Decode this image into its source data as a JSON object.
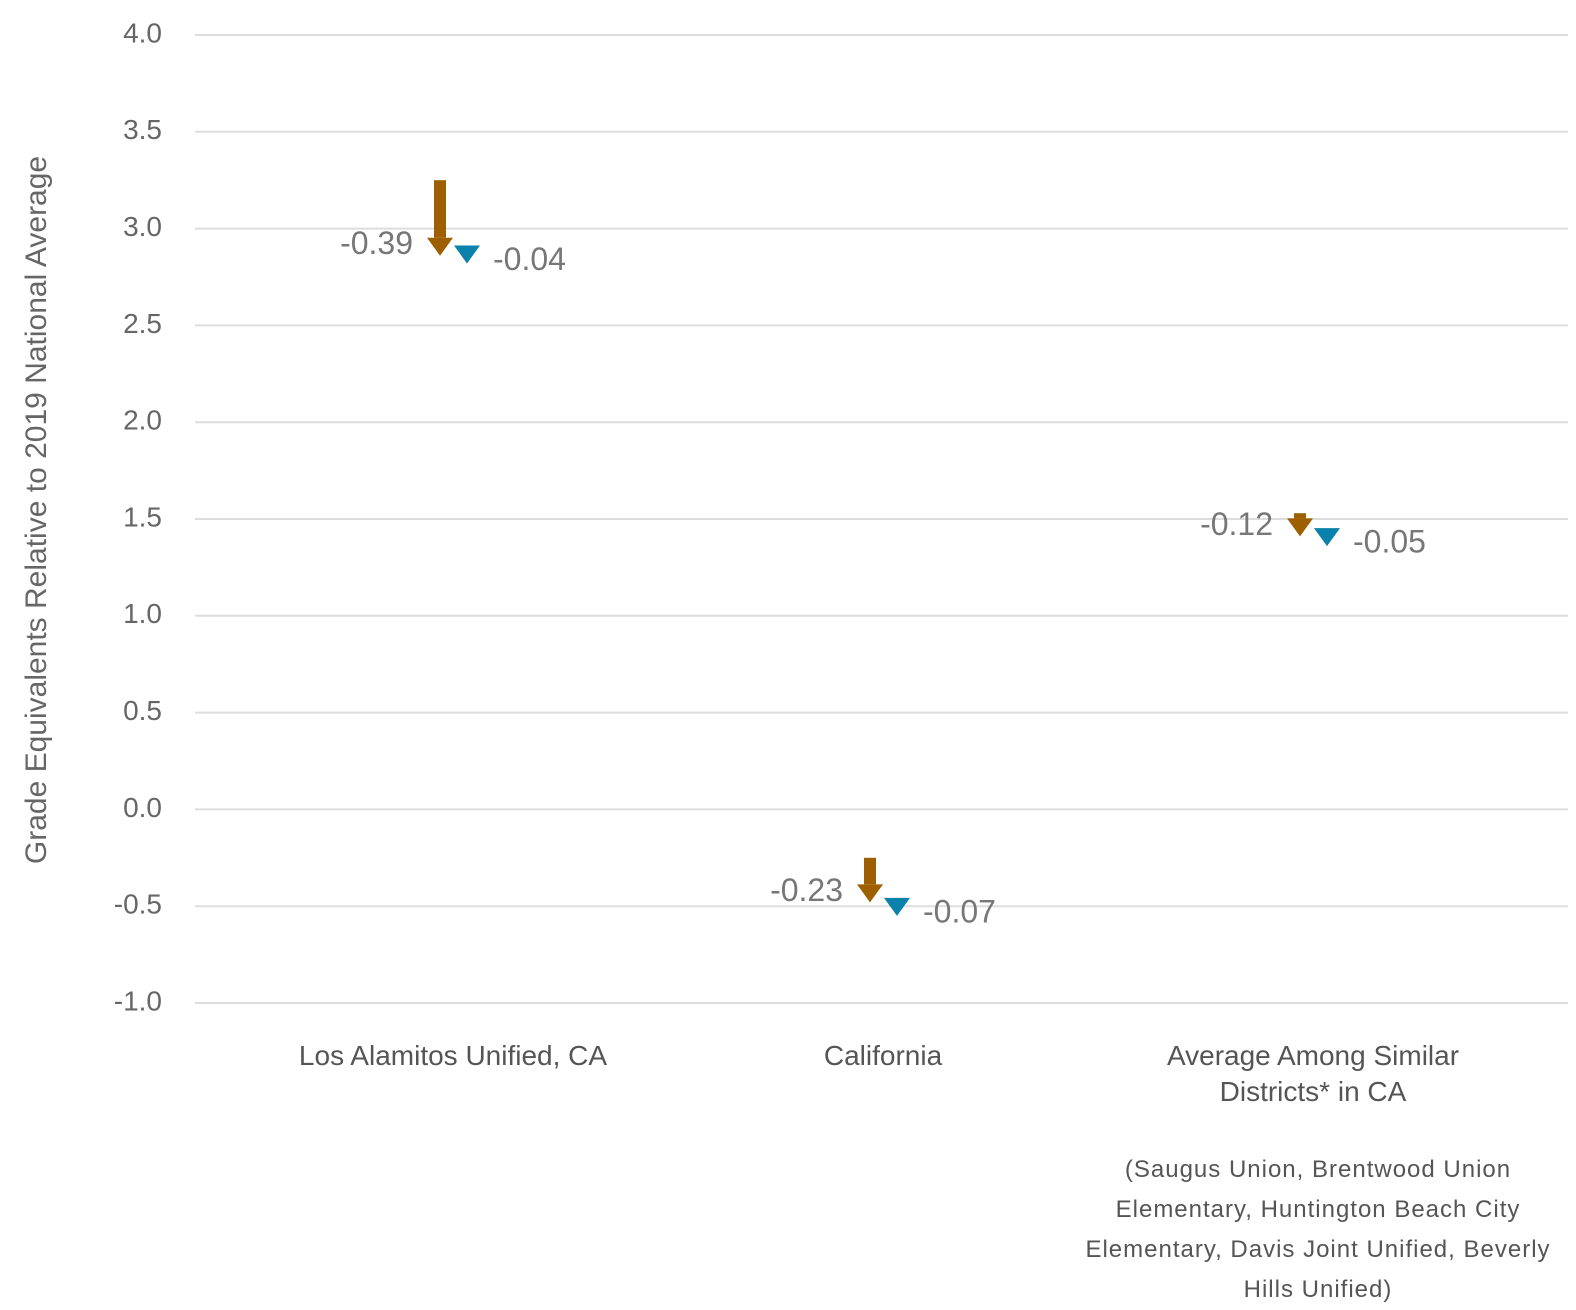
{
  "chart_data": {
    "type": "arrow",
    "y_label": "Grade Equivalents Relative to 2019 National Average",
    "categories": [
      "Los Alamitos Unified, CA",
      "California",
      "Average Among Similar Districts* in CA"
    ],
    "starts": [
      3.25,
      -0.25,
      1.53
    ],
    "series": [
      {
        "color": "#9e5f00",
        "values": [
          -0.39,
          -0.23,
          -0.12
        ]
      },
      {
        "color": "#0a82ab",
        "values": [
          -0.04,
          -0.07,
          -0.05
        ]
      }
    ],
    "note": "(Saugus Union, Brentwood Union Elementary, Huntington Beach City Elementary, Davis Joint Unified, Beverly Hills Unified)",
    "ylim": [
      -1,
      4
    ],
    "yticks": [
      {
        "value": -1,
        "label": "-1.0"
      },
      -0.5,
      {
        "value": 0,
        "label": "0.0"
      },
      0.5,
      {
        "value": 1,
        "label": "1.0"
      },
      1.5,
      {
        "value": 2,
        "label": "2.0"
      },
      2.5,
      {
        "value": 3,
        "label": "3.0"
      },
      3.5,
      {
        "value": 4,
        "label": "4.0"
      }
    ],
    "grid": true
  }
}
